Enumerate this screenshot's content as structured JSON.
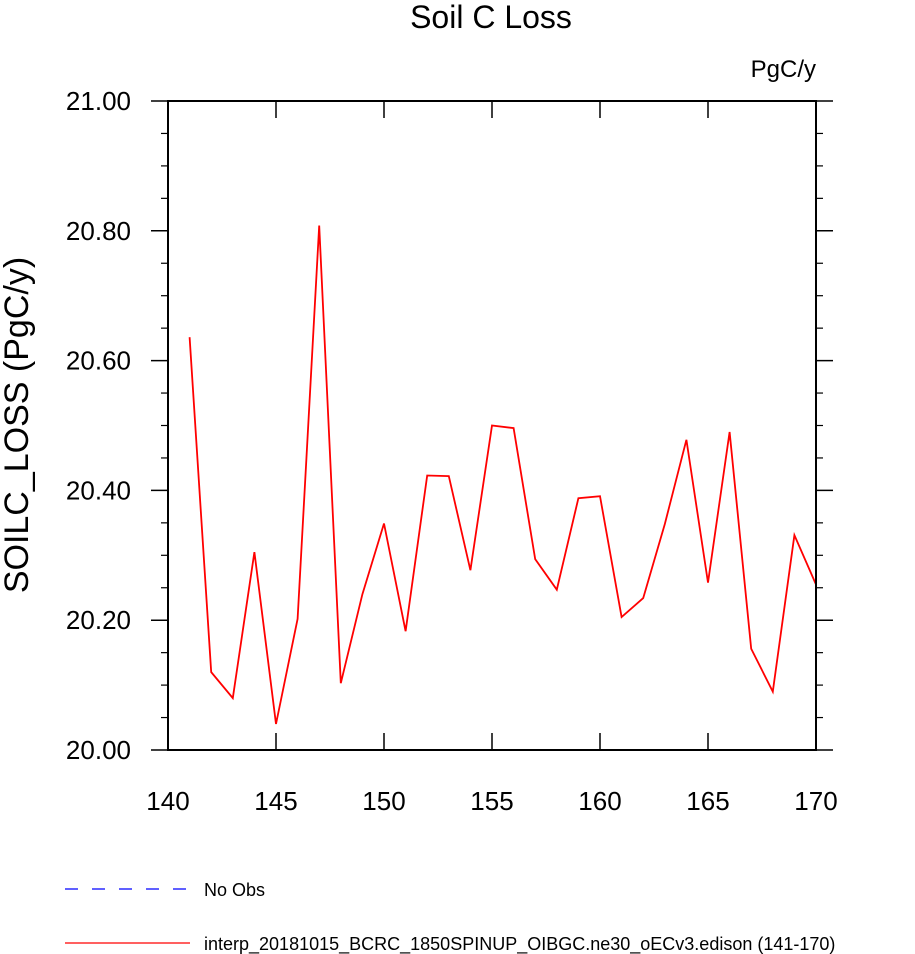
{
  "chart_data": {
    "type": "line",
    "title": "Soil C Loss",
    "units_label": "PgC/y",
    "ylabel": "SOILC_LOSS  (PgC/y)",
    "xlabel": "",
    "xlim": [
      140,
      170
    ],
    "ylim": [
      20.0,
      21.0
    ],
    "x_ticks": [
      140,
      145,
      150,
      155,
      160,
      165,
      170
    ],
    "x_tick_labels": [
      "140",
      "145",
      "150",
      "155",
      "160",
      "165",
      "170"
    ],
    "y_ticks": [
      20.0,
      20.2,
      20.4,
      20.6,
      20.8,
      21.0
    ],
    "y_tick_labels": [
      "20.00",
      "20.20",
      "20.40",
      "20.60",
      "20.80",
      "21.00"
    ],
    "y_minor_ticks": [
      20.05,
      20.1,
      20.15,
      20.25,
      20.3,
      20.35,
      20.45,
      20.5,
      20.55,
      20.65,
      20.7,
      20.75,
      20.85,
      20.9,
      20.95
    ],
    "grid": false,
    "series": [
      {
        "name": "interp_20181015_BCRC_1850SPINUP_OIBGC.ne30_oECv3.edison (141-170)",
        "color": "#ff0000",
        "x": [
          141,
          142,
          143,
          144,
          145,
          146,
          147,
          148,
          149,
          150,
          151,
          152,
          153,
          154,
          155,
          156,
          157,
          158,
          159,
          160,
          161,
          162,
          163,
          164,
          165,
          166,
          167,
          168,
          169,
          170
        ],
        "y": [
          20.636,
          20.12,
          20.08,
          20.305,
          20.04,
          20.202,
          20.808,
          20.103,
          20.24,
          20.349,
          20.183,
          20.423,
          20.422,
          20.277,
          20.5,
          20.496,
          20.294,
          20.247,
          20.388,
          20.391,
          20.205,
          20.234,
          20.348,
          20.478,
          20.258,
          20.49,
          20.156,
          20.09,
          20.331,
          20.255
        ]
      }
    ],
    "legend": [
      {
        "label": "No Obs",
        "color": "#0000ff",
        "style": "dashed"
      },
      {
        "label": "interp_20181015_BCRC_1850SPINUP_OIBGC.ne30_oECv3.edison (141-170)",
        "color": "#ff0000",
        "style": "solid"
      }
    ],
    "legend_position": "bottom-left"
  }
}
